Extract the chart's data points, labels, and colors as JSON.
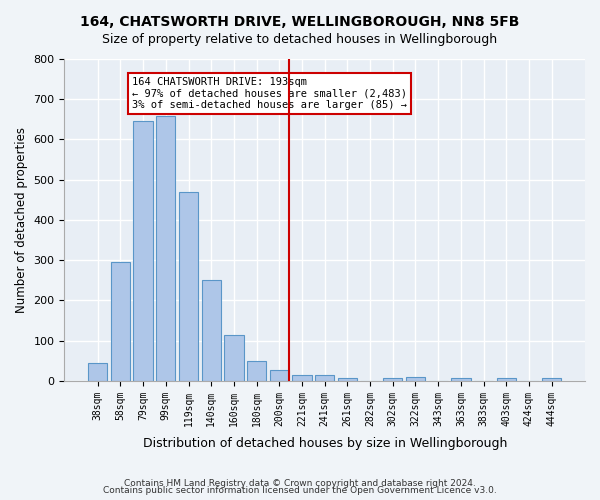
{
  "title1": "164, CHATSWORTH DRIVE, WELLINGBOROUGH, NN8 5FB",
  "title2": "Size of property relative to detached houses in Wellingborough",
  "xlabel": "Distribution of detached houses by size in Wellingborough",
  "ylabel": "Number of detached properties",
  "categories": [
    "38sqm",
    "58sqm",
    "79sqm",
    "99sqm",
    "119sqm",
    "140sqm",
    "160sqm",
    "180sqm",
    "200sqm",
    "221sqm",
    "241sqm",
    "261sqm",
    "282sqm",
    "302sqm",
    "322sqm",
    "343sqm",
    "363sqm",
    "383sqm",
    "403sqm",
    "424sqm",
    "444sqm"
  ],
  "bar_values": [
    45,
    295,
    645,
    658,
    470,
    252,
    115,
    50,
    27,
    15,
    15,
    7,
    0,
    7,
    10,
    0,
    7,
    0,
    7,
    0,
    7
  ],
  "bar_color": "#aec6e8",
  "bar_edge_color": "#5a96c8",
  "bg_color": "#e8eef5",
  "grid_color": "#ffffff",
  "vline_x": 8.5,
  "vline_color": "#cc0000",
  "annotation_text": "164 CHATSWORTH DRIVE: 193sqm\n← 97% of detached houses are smaller (2,483)\n3% of semi-detached houses are larger (85) →",
  "annotation_box_color": "#cc0000",
  "ylim": [
    0,
    800
  ],
  "yticks": [
    0,
    100,
    200,
    300,
    400,
    500,
    600,
    700,
    800
  ],
  "footer1": "Contains HM Land Registry data © Crown copyright and database right 2024.",
  "footer2": "Contains public sector information licensed under the Open Government Licence v3.0."
}
